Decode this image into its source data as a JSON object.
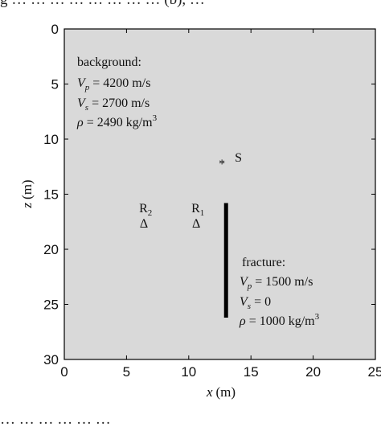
{
  "caption_top": "g … … … … … … … … (b), …",
  "caption_bottom": "… … … … … …",
  "figure": {
    "xlabel": {
      "var": "x",
      "unit": "(m)"
    },
    "ylabel": {
      "var": "z",
      "unit": "(m)"
    },
    "xlim": [
      0,
      25
    ],
    "ylim": [
      0,
      30
    ],
    "xticks": [
      "0",
      "5",
      "10",
      "15",
      "20",
      "25"
    ],
    "yticks": [
      "0",
      "5",
      "10",
      "15",
      "20",
      "25",
      "30"
    ],
    "background": {
      "title": "background:",
      "vp_value": " = 4200 m/s",
      "vs_value": " = 2700 m/s",
      "rho_value": " = 2490 kg/m",
      "rho_sup": "3"
    },
    "source": {
      "label": "S",
      "symbol": "*",
      "x": 12.8,
      "z": 11.9
    },
    "receivers": [
      {
        "base": "R",
        "sub": "2",
        "marker": "Δ",
        "x": 6.4,
        "z": 17.6
      },
      {
        "base": "R",
        "sub": "1",
        "marker": "Δ",
        "x": 10.6,
        "z": 17.6
      }
    ],
    "fracture": {
      "x": 13.0,
      "z_top": 15.8,
      "z_bottom": 26.2,
      "title": "fracture:",
      "vp_value": " = 1500 m/s",
      "vs_value": " = 0",
      "rho_value": " = 1000 kg/m",
      "rho_sup": "3"
    },
    "colors": {
      "panel": "#d9d9d9",
      "frame": "#000000",
      "fracture": "#000000"
    }
  }
}
